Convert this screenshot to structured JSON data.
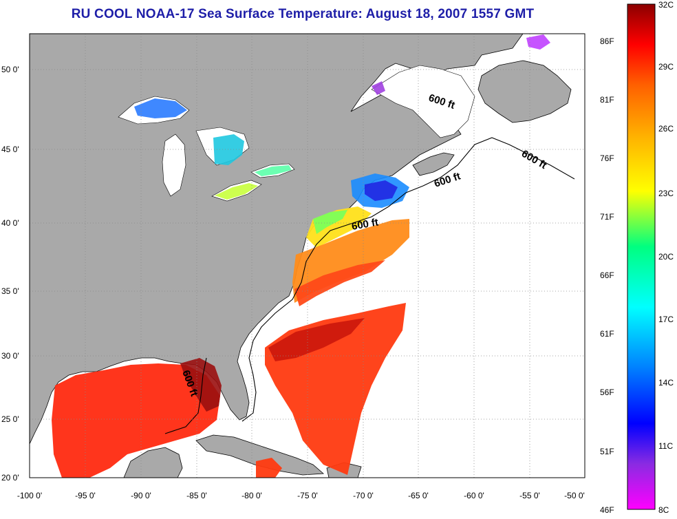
{
  "title": "RU COOL  NOAA-17  Sea Surface Temperature:  August 18, 2007 1557 GMT",
  "map": {
    "lon_ticks": [
      "-100 0'",
      "-95 0'",
      "-90 0'",
      "-85 0'",
      "-80 0'",
      "-75 0'",
      "-70 0'",
      "-65 0'",
      "-60 0'",
      "-55 0'",
      "-50 0'"
    ],
    "lat_ticks": [
      "20 0'",
      "25 0'",
      "30 0'",
      "35 0'",
      "40 0'",
      "45 0'",
      "50 0'"
    ],
    "contour_labels": [
      "600 ft",
      "600 ft",
      "600 ft",
      "600 ft",
      "600 ft"
    ],
    "colors": {
      "land": "#a9a9a9",
      "ocean_nodata": "#ffffff",
      "grid": "#888888"
    }
  },
  "colorbar": {
    "fahrenheit_labels": [
      "86F",
      "81F",
      "76F",
      "71F",
      "66F",
      "61F",
      "56F",
      "51F",
      "46F"
    ],
    "celsius_labels": [
      "32C",
      "29C",
      "26C",
      "23C",
      "20C",
      "17C",
      "14C",
      "11C",
      "8C"
    ],
    "gradient_stops": [
      "#ff00ff",
      "#8a2be2",
      "#0000ff",
      "#0080ff",
      "#00ffff",
      "#00ff80",
      "#ffff00",
      "#ffb000",
      "#ff6000",
      "#ff0000",
      "#8b0000"
    ]
  }
}
